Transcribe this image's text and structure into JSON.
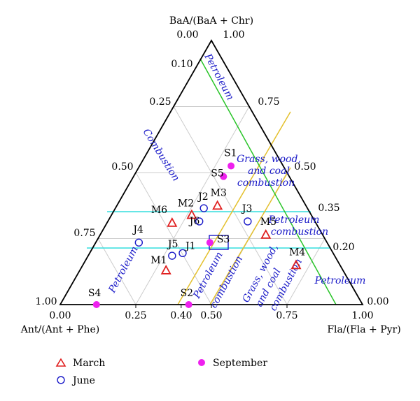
{
  "chart_data": {
    "type": "scatter",
    "subtype": "ternary",
    "axes": {
      "top": "BaA/(BaA + Chr)",
      "bottom_left": "Ant/(Ant + Phe)",
      "bottom_right": "Fla/(Fla + Pyr)"
    },
    "bottom_ticks": [
      "0.00",
      "0.25",
      "0.40",
      "0.50",
      "0.75",
      "1.00"
    ],
    "left_ticks": [
      "0.00",
      "0.10",
      "0.25",
      "0.50",
      "0.75",
      "1.00"
    ],
    "right_ticks": [
      "1.00",
      "0.75",
      "0.50",
      "0.35",
      "0.20",
      "0.00"
    ],
    "series": [
      {
        "name": "March",
        "marker": "triangle",
        "color": "#e02020",
        "points": [
          {
            "label": "M1",
            "x": 0.35,
            "y": 0.13
          },
          {
            "label": "M2",
            "x": 0.435,
            "y": 0.34
          },
          {
            "label": "M3",
            "x": 0.52,
            "y": 0.375
          },
          {
            "label": "M4",
            "x": 0.78,
            "y": 0.15
          },
          {
            "label": "M5",
            "x": 0.68,
            "y": 0.265
          },
          {
            "label": "M6",
            "x": 0.37,
            "y": 0.31
          }
        ]
      },
      {
        "name": "June",
        "marker": "circle",
        "color": "#1a1ac8",
        "points": [
          {
            "label": "J1",
            "x": 0.405,
            "y": 0.195
          },
          {
            "label": "J2",
            "x": 0.475,
            "y": 0.365
          },
          {
            "label": "J3",
            "x": 0.62,
            "y": 0.315
          },
          {
            "label": "J4",
            "x": 0.26,
            "y": 0.235
          },
          {
            "label": "J5",
            "x": 0.37,
            "y": 0.185
          },
          {
            "label": "J6",
            "x": 0.46,
            "y": 0.315
          }
        ]
      },
      {
        "name": "September",
        "marker": "filled-circle",
        "color": "#ee20ee",
        "points": [
          {
            "label": "S1",
            "x": 0.565,
            "y": 0.525
          },
          {
            "label": "S2",
            "x": 0.425,
            "y": 0.0
          },
          {
            "label": "S3",
            "x": 0.495,
            "y": 0.235
          },
          {
            "label": "S4",
            "x": 0.12,
            "y": 0.0
          },
          {
            "label": "S5",
            "x": 0.54,
            "y": 0.485
          }
        ]
      }
    ],
    "regions": [
      "Petroleum",
      "Combustion",
      "Grass, wood,",
      "and coal",
      "combustion",
      "Petroleum",
      "combustion",
      "Petroleum",
      "Petroleum",
      "combustion",
      "Grass, wood,",
      "and coal",
      "combustion",
      "Petroleum"
    ],
    "legend_position": "bottom"
  }
}
